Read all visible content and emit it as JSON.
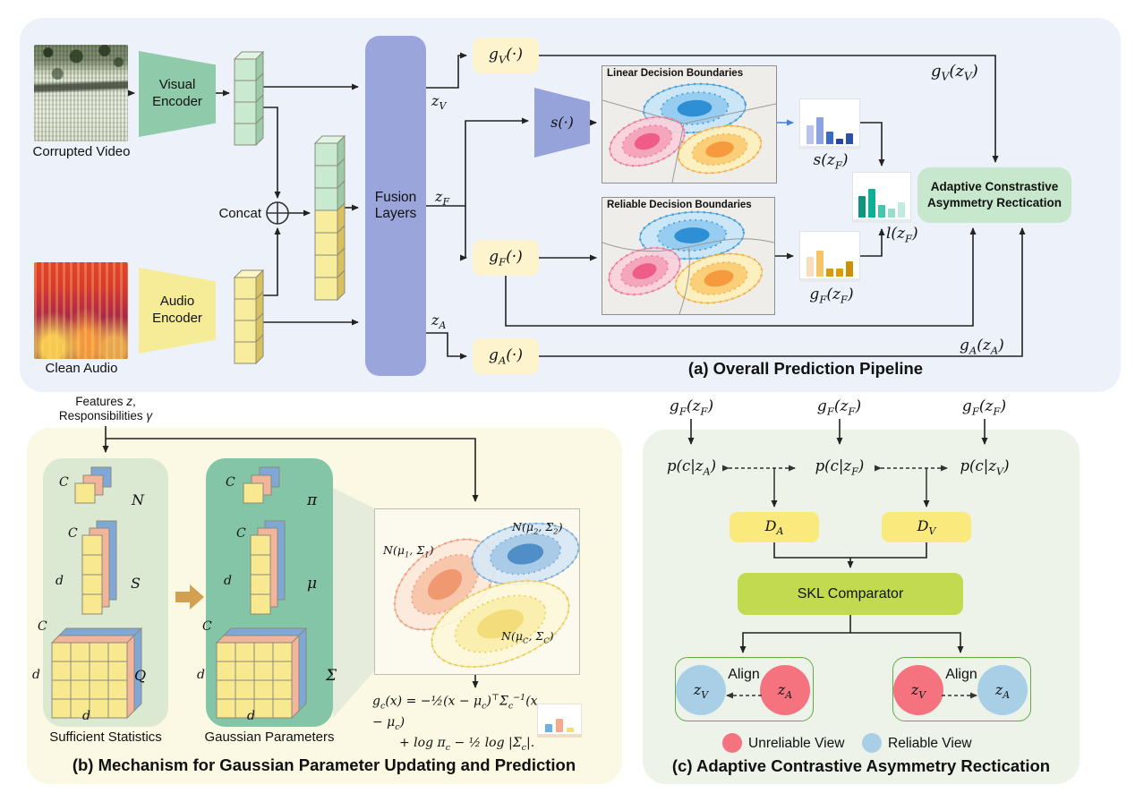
{
  "colors": {
    "panel_a_bg": "#ecf1fa",
    "panel_b_bg": "#fbf9e3",
    "panel_c_bg": "#edf3e9",
    "visual_encoder": "#8fcbaa",
    "audio_encoder": "#f6eb97",
    "fusion": "#9aa5dc",
    "s_fn": "#96a2da",
    "g_box": "#fdf3cd",
    "adaptive_box": "#c7e8cc",
    "d_box": "#fae97d",
    "skl_box": "#c2da50",
    "align_border": "#64a84b",
    "reliable_blue": "#a8cfe5",
    "unreliable_red": "#f4737f",
    "sufficient_box": "#dce9d2",
    "gaussian_box": "#83c5a6",
    "blue_arrow": "#4a7fd4"
  },
  "panel_a": {
    "title": "(a) Overall  Prediction Pipeline",
    "corrupted_video": "Corrupted Video",
    "clean_audio": "Clean Audio",
    "visual_encoder": "Visual<br>Encoder",
    "audio_encoder": "Audio<br>Encoder",
    "concat": "Concat",
    "fusion": "Fusion<br>Layers",
    "z_v": "z<sub>V</sub>",
    "z_f": "z<sub>F</sub>",
    "z_a": "z<sub>A</sub>",
    "g_v": "g<sub>V</sub>(·)",
    "g_f": "g<sub>F</sub>(·)",
    "g_a": "g<sub>A</sub>(·)",
    "s_fn": "s(·)",
    "linear_title": "Linear Decision Boundaries",
    "reliable_title": "Reliable Decision Boundaries",
    "s_zf": "s(z<sub>F</sub>)",
    "l_zf": "l(z<sub>F</sub>)",
    "gf_zf": "g<sub>F</sub>(z<sub>F</sub>)",
    "gv_zv": "g<sub>V</sub>(z<sub>V</sub>)",
    "ga_za": "g<sub>A</sub>(z<sub>A</sub>)",
    "adaptive": "Adaptive Constrastive<br>Asymmetry Rectication"
  },
  "panel_b": {
    "title": "(b) Mechanism for Gaussian Parameter Updating and Prediction",
    "features": "Features <i>z</i>,<br>Responsibilities <i>γ</i>",
    "sufficient_caption": "Sufficient Statistics",
    "gaussian_caption": "Gaussian Parameters",
    "labels": {
      "C": "C",
      "d": "d",
      "N": "N",
      "S": "S",
      "Q": "Q",
      "pi": "π",
      "mu": "μ",
      "sigma": "Σ"
    },
    "n1": "N(μ<sub>1</sub>, Σ<sub>1</sub>)",
    "n2": "N(μ<sub>2</sub>, Σ<sub>2</sub>)",
    "nc": "N(μ<sub>C</sub>, Σ<sub>C</sub>)",
    "formula_line1": "g<sub>c</sub>(x) = −½(x − μ<sub>c</sub>)<sup>⊤</sup>Σ<sub>c</sub><sup>−1</sup>(x − μ<sub>c</sub>)",
    "formula_line2": "+ log π<sub>c</sub> − ½ log |Σ<sub>c</sub>|."
  },
  "panel_c": {
    "title": "(c) Adaptive Contrastive  Asymmetry Rectication",
    "gf_zf_1": "g<sub>F</sub>(z<sub>F</sub>)",
    "gf_zf_2": "g<sub>F</sub>(z<sub>F</sub>)",
    "gf_zf_3": "g<sub>F</sub>(z<sub>F</sub>)",
    "p_za": "p(c|z<sub>A</sub>)",
    "p_zf": "p(c|z<sub>F</sub>)",
    "p_zv": "p(c|z<sub>V</sub>)",
    "d_a": "D<sub>A</sub>",
    "d_v": "D<sub>V</sub>",
    "skl": "SKL Comparator",
    "align_left": "Align",
    "align_right": "Align",
    "z_v": "z<sub>V</sub>",
    "z_a": "z<sub>A</sub>",
    "legend_unreliable": "Unreliable View",
    "legend_reliable": "Reliable View"
  },
  "charts": {
    "s_zf": {
      "type": "bar",
      "values": [
        45,
        66,
        30,
        14,
        26
      ],
      "colors": [
        "#b9c5ec",
        "#8da2e2",
        "#3a6ac5",
        "#24449f",
        "#2a52ad"
      ]
    },
    "l_zf": {
      "type": "bar",
      "values": [
        52,
        70,
        30,
        22,
        38
      ],
      "colors": [
        "#0e9480",
        "#0fae97",
        "#44c5ad",
        "#97dfcc",
        "#c2ebdf"
      ]
    },
    "gf_zf": {
      "type": "bar",
      "values": [
        48,
        64,
        20,
        20,
        36
      ],
      "colors": [
        "#f8debc",
        "#f6c469",
        "#d99b10",
        "#d99b10",
        "#cb8f0b"
      ]
    },
    "gaussian_scores": {
      "type": "bar",
      "values": [
        34,
        56,
        18
      ],
      "colors": [
        "#6fb0e0",
        "#f8a98c",
        "#f5dd6e"
      ]
    }
  }
}
